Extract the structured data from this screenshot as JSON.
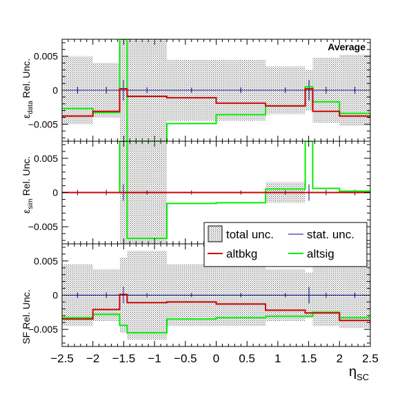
{
  "annotation": "Average",
  "x_axis": {
    "title_main": "η",
    "title_sub": "SC",
    "tick_labels": [
      "−2.5",
      "−2",
      "−1.5",
      "−1",
      "−0.5",
      "0",
      "0.5",
      "1",
      "1.5",
      "2",
      "2.5"
    ]
  },
  "panel_labels": {
    "p1": {
      "pre": "ε",
      "sub": "data",
      "post": " Rel. Unc."
    },
    "p2": {
      "pre": "ε",
      "sub": "sim",
      "post": " Rel. Unc."
    },
    "p3": {
      "pre": "SF Rel. Unc.",
      "sub": "",
      "post": ""
    }
  },
  "legend": {
    "total": "total unc.",
    "stat": "stat. unc.",
    "altbkg": "altbkg",
    "altsig": "altsig"
  },
  "colors": {
    "altbkg": "#cc0000",
    "altsig": "#00ee00",
    "stat": "#000080",
    "total_hatch": "#555555"
  },
  "chart_data": [
    {
      "type": "step",
      "panel": "data efficiency",
      "ylabel": "ε_data Rel. Unc.",
      "ylim": [
        -0.0075,
        0.0075
      ],
      "yticks": [
        -0.005,
        0,
        0.005
      ],
      "ytick_labels": [
        "−0.005",
        "0",
        "0.005"
      ],
      "bin_edges": [
        -2.5,
        -2.0,
        -1.566,
        -1.4442,
        -0.8,
        0.0,
        0.8,
        1.4442,
        1.566,
        2.0,
        2.5
      ],
      "series": [
        {
          "name": "altbkg",
          "values": [
            -0.0038,
            -0.0031,
            0.0002,
            -0.0009,
            -0.0011,
            -0.0019,
            -0.0023,
            0.0002,
            -0.0031,
            -0.0038
          ]
        },
        {
          "name": "altsig",
          "values": [
            -0.0027,
            -0.0033,
            0.0075,
            -0.0075,
            -0.0049,
            -0.0036,
            -0.0023,
            0.0005,
            -0.0017,
            -0.0034
          ]
        },
        {
          "name": "stat. unc.",
          "values": [
            0.0005,
            0.0005,
            0.0015,
            0.0004,
            0.0004,
            0.0004,
            0.0004,
            0.0015,
            0.0005,
            0.0005
          ]
        },
        {
          "name": "total unc.",
          "values": [
            0.005,
            0.004,
            0.0075,
            0.0075,
            0.0045,
            0.0045,
            0.0035,
            0.003,
            0.0048,
            0.0052
          ]
        }
      ]
    },
    {
      "type": "step",
      "panel": "simulation efficiency",
      "ylabel": "ε_sim Rel. Unc.",
      "ylim": [
        -0.0075,
        0.0075
      ],
      "yticks": [
        -0.005,
        0,
        0.005
      ],
      "ytick_labels": [
        "−0.005",
        "0",
        "0.005"
      ],
      "bin_edges": [
        -2.5,
        -2.0,
        -1.566,
        -1.4442,
        -0.8,
        0.0,
        0.8,
        1.4442,
        1.566,
        2.0,
        2.5
      ],
      "series": [
        {
          "name": "altbkg",
          "values": [
            0.0,
            0.0,
            0.0,
            0.0,
            0.0,
            0.0,
            0.0,
            0.0,
            0.0,
            0.0
          ]
        },
        {
          "name": "altsig",
          "values": [
            0.0,
            0.0,
            0.0075,
            -0.0067,
            -0.0016,
            -0.0015,
            0.0005,
            0.0075,
            0.0006,
            0.0002
          ]
        },
        {
          "name": "stat. unc.",
          "values": [
            0.0004,
            0.0004,
            0.0012,
            0.0003,
            0.0003,
            0.0003,
            0.0003,
            0.0012,
            0.0004,
            0.0004
          ]
        },
        {
          "name": "total unc.",
          "values": [
            0.0,
            0.0,
            0.0075,
            0.0075,
            0.0,
            0.0,
            0.0015,
            0.0,
            0.0,
            0.0
          ]
        }
      ]
    },
    {
      "type": "step",
      "panel": "scale factor",
      "ylabel": "SF Rel. Unc.",
      "ylim": [
        -0.0075,
        0.0075
      ],
      "yticks": [
        -0.005,
        0,
        0.005
      ],
      "ytick_labels": [
        "−0.005",
        "0",
        "0.005"
      ],
      "bin_edges": [
        -2.5,
        -2.0,
        -1.566,
        -1.4442,
        -0.8,
        0.0,
        0.8,
        1.4442,
        1.566,
        2.0,
        2.5
      ],
      "series": [
        {
          "name": "altbkg",
          "values": [
            -0.0035,
            -0.0021,
            0.0001,
            -0.0011,
            -0.001,
            -0.0013,
            -0.0022,
            -0.0026,
            -0.0026,
            -0.0037
          ]
        },
        {
          "name": "altsig",
          "values": [
            -0.0033,
            -0.0028,
            -0.0044,
            -0.0055,
            -0.0035,
            -0.0033,
            -0.0031,
            -0.0031,
            -0.0025,
            -0.0033
          ]
        },
        {
          "name": "stat. unc.",
          "values": [
            0.0004,
            0.0004,
            0.0012,
            0.0003,
            0.0003,
            0.0003,
            0.0003,
            0.0012,
            0.0004,
            0.0004
          ]
        },
        {
          "name": "total unc.",
          "values": [
            0.0045,
            0.0038,
            0.0055,
            0.0065,
            0.0045,
            0.0045,
            0.0038,
            0.0033,
            0.0045,
            0.0048
          ]
        }
      ]
    }
  ]
}
